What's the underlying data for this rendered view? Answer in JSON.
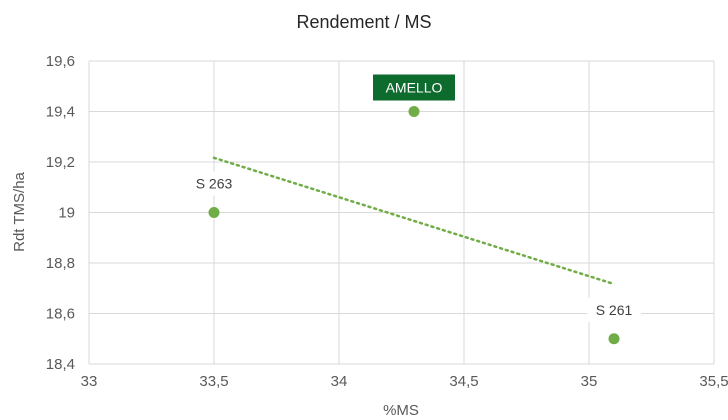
{
  "colors": {
    "point": "#70ad47",
    "trendline": "#70ad47",
    "highlight_label_bg": "#0d6b2e",
    "highlight_label_text": "#ffffff",
    "grid": "#d9d9d9",
    "text": "#595959"
  },
  "chart_data": {
    "type": "scatter",
    "title": "Rendement / MS",
    "xlabel": "%MS",
    "ylabel": "Rdt TMS/ha",
    "xlim": [
      33,
      35.5
    ],
    "ylim": [
      18.4,
      19.6
    ],
    "x_ticks": [
      33,
      33.5,
      34,
      34.5,
      35,
      35.5
    ],
    "x_tick_labels": [
      "33",
      "33,5",
      "34",
      "34,5",
      "35",
      "35,5"
    ],
    "y_ticks": [
      18.4,
      18.6,
      18.8,
      19,
      19.2,
      19.4,
      19.6
    ],
    "y_tick_labels": [
      "18,4",
      "18,6",
      "18,8",
      "19",
      "19,2",
      "19,4",
      "19,6"
    ],
    "grid": true,
    "points": [
      {
        "label": "S 263",
        "x": 33.5,
        "y": 19.0,
        "highlight": false
      },
      {
        "label": "AMELLO",
        "x": 34.3,
        "y": 19.4,
        "highlight": true
      },
      {
        "label": "S 261",
        "x": 35.1,
        "y": 18.5,
        "highlight": false
      }
    ],
    "trendline": {
      "type": "linear",
      "style": "dotted",
      "x_start": 33.5,
      "x_end": 35.1
    }
  }
}
